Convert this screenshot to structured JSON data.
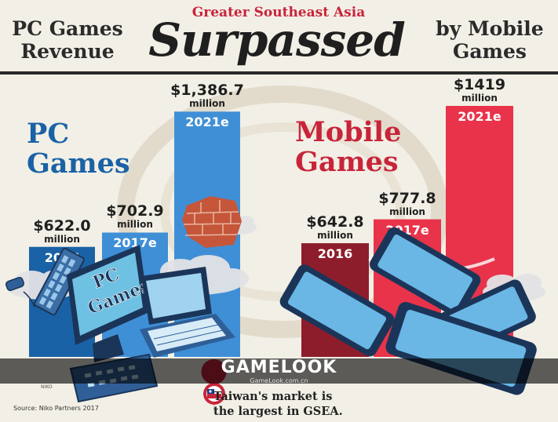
{
  "header": {
    "region": "Greater Southeast Asia",
    "left_lines": [
      "PC Games",
      "Revenue"
    ],
    "big": "Surpassed",
    "right_lines": [
      "by Mobile",
      "Games"
    ]
  },
  "chart_data": {
    "type": "bar",
    "title": "Greater Southeast Asia PC Games Revenue Surpassed by Mobile Games",
    "categories": [
      "2016",
      "2017e",
      "2021e"
    ],
    "series": [
      {
        "name": "PC Games",
        "name_lines": [
          "PC",
          "Games"
        ],
        "color": "#1a62a6",
        "color_light": "#3f8fd6",
        "values": [
          622.0,
          702.9,
          1386.7
        ],
        "value_labels": [
          "$622.0",
          "$702.9",
          "$1,386.7"
        ]
      },
      {
        "name": "Mobile Games",
        "name_lines": [
          "Mobile",
          "Games"
        ],
        "color": "#8e1d2b",
        "color_light": "#e8334a",
        "values": [
          642.8,
          777.8,
          1419
        ],
        "value_labels": [
          "$642.8",
          "$777.8",
          "$1419"
        ]
      }
    ],
    "unit": "million",
    "xlabel": "",
    "ylabel": "",
    "ylim": [
      0,
      1500
    ],
    "grid": false
  },
  "icons": [
    "pc-monitor-icon",
    "keyboard-icon",
    "laptop-icon",
    "mouse-icon",
    "brick-wall-icon",
    "cloud-icon",
    "smartphone-icon",
    "taiwan-flag-pin-icon"
  ],
  "illustration": {
    "monitor_text_lines": [
      "PC",
      "Games"
    ]
  },
  "watermark": {
    "logo": "GAMELOOK",
    "url": "GameLook.com.cn"
  },
  "footnote": {
    "lines": [
      "Taiwan's market is",
      "the largest in GSEA."
    ]
  },
  "source": "Source: Niko Partners 2017",
  "source_logo": "NIKO",
  "colors": {
    "pc_blue": "#1a62a6",
    "mobile_red": "#c8243a",
    "background": "#f2efe6"
  }
}
